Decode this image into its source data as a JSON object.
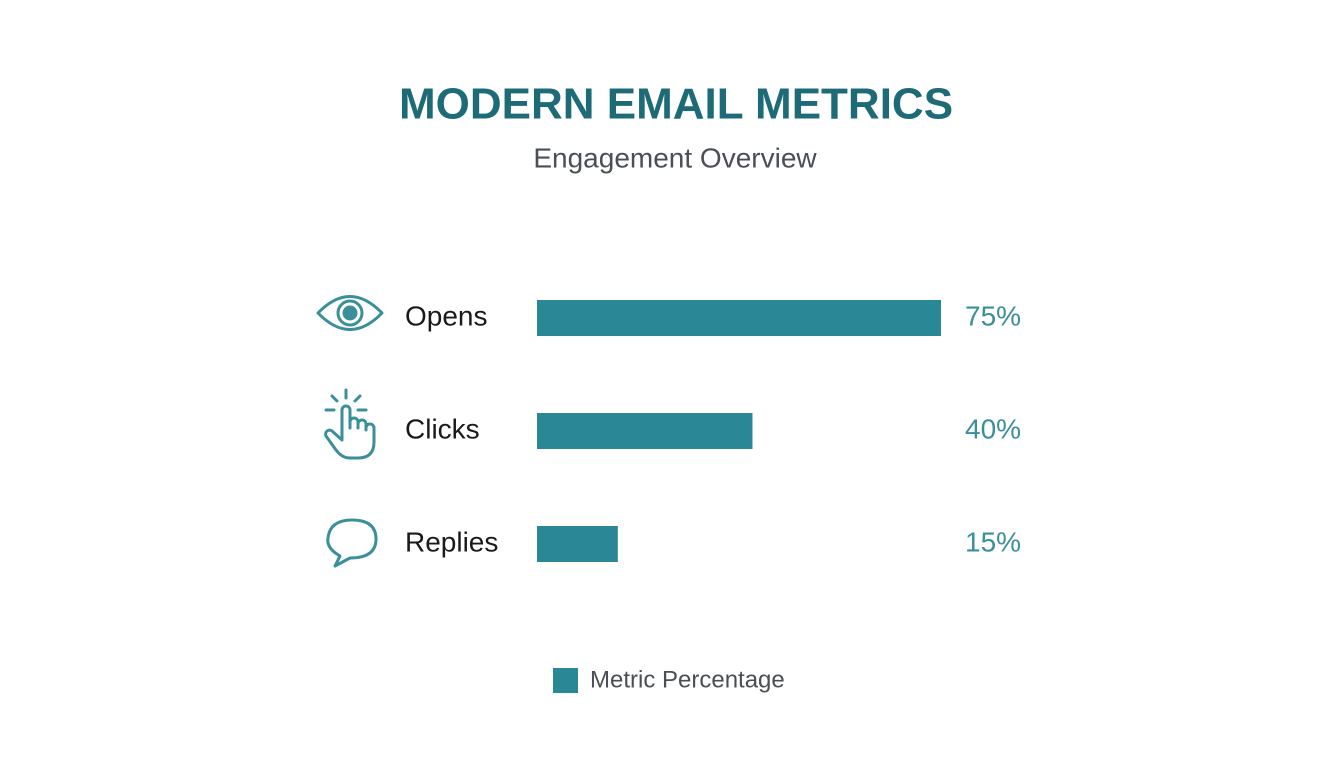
{
  "chart_data": {
    "type": "bar",
    "orientation": "horizontal",
    "title": "MODERN EMAIL METRICS",
    "subtitle": "Engagement Overview",
    "categories": [
      "Opens",
      "Clicks",
      "Replies"
    ],
    "series": [
      {
        "name": "Metric Percentage",
        "color": "#2a8795",
        "values": [
          75,
          40,
          15
        ],
        "value_labels": [
          "75%",
          "40%",
          "15%"
        ]
      }
    ],
    "legend": "bottom"
  }
}
